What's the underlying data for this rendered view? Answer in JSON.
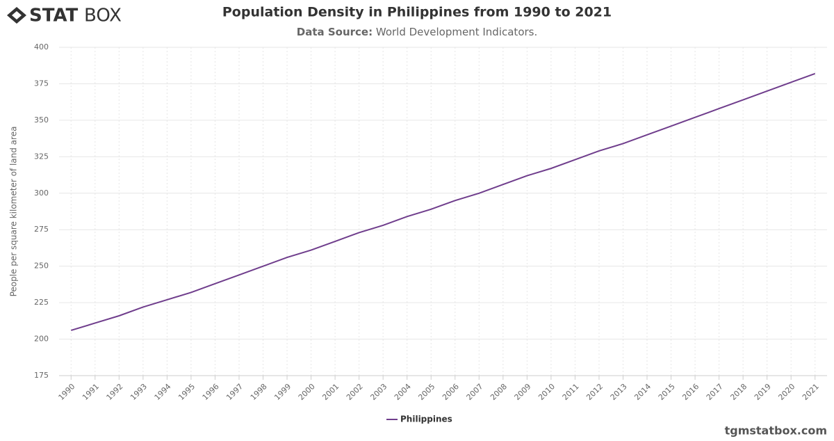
{
  "logo": {
    "bold": "STAT",
    "light": "BOX"
  },
  "footer": "tgmstatbox.com",
  "chart_data": {
    "type": "line",
    "title": "Population Density in Philippines from 1990 to 2021",
    "subtitle_label": "Data Source:",
    "subtitle": "World Development Indicators.",
    "y_label": "People per square kilometer of land area",
    "x": [
      1990,
      1991,
      1992,
      1993,
      1994,
      1995,
      1996,
      1997,
      1998,
      1999,
      2000,
      2001,
      2002,
      2003,
      2004,
      2005,
      2006,
      2007,
      2008,
      2009,
      2010,
      2011,
      2012,
      2013,
      2014,
      2015,
      2016,
      2017,
      2018,
      2019,
      2020,
      2021
    ],
    "series": [
      {
        "name": "Philippines",
        "color": "#6f3d8c",
        "values": [
          206,
          211,
          216,
          222,
          227,
          232,
          238,
          244,
          250,
          256,
          261,
          267,
          273,
          278,
          284,
          289,
          295,
          300,
          306,
          312,
          317,
          323,
          329,
          334,
          340,
          346,
          352,
          358,
          364,
          370,
          376,
          382
        ]
      }
    ],
    "xlim": [
      1989.5,
      2021.5
    ],
    "xticks": [
      1990,
      1991,
      1992,
      1993,
      1994,
      1995,
      1996,
      1997,
      1998,
      1999,
      2000,
      2001,
      2002,
      2003,
      2004,
      2005,
      2006,
      2007,
      2008,
      2009,
      2010,
      2011,
      2012,
      2013,
      2014,
      2015,
      2016,
      2017,
      2018,
      2019,
      2020,
      2021
    ],
    "ylim": [
      175,
      400
    ],
    "yticks": [
      175,
      200,
      225,
      250,
      275,
      300,
      325,
      350,
      375,
      400
    ],
    "grid": true
  }
}
